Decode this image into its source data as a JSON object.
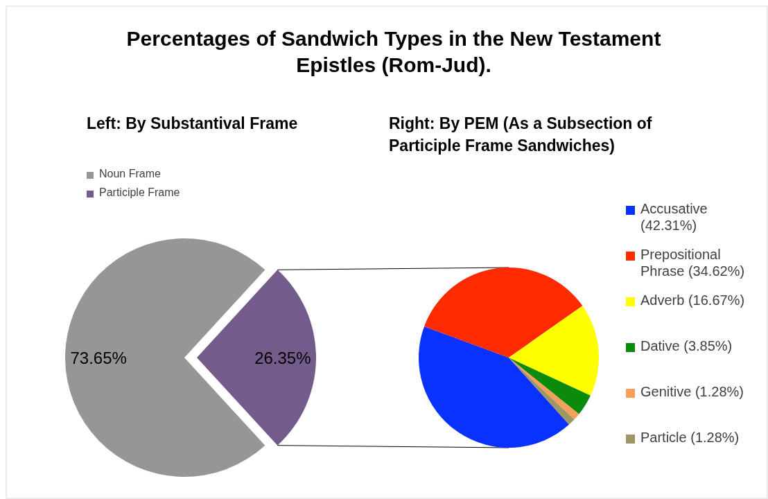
{
  "chart_data": [
    {
      "type": "pie",
      "title": "Percentages of Sandwich Types in the New Testament Epistles (Rom-Jud).",
      "subtitle": "Left: By Substantival Frame",
      "categories": [
        "Noun Frame",
        "Participle Frame"
      ],
      "values": [
        73.65,
        26.35
      ],
      "colors": [
        "#969696",
        "#735b8c"
      ],
      "value_labels": [
        "73.65%",
        "26.35%"
      ],
      "legend": "top left"
    },
    {
      "type": "pie",
      "title": "Right: By PEM (As a Subsection of Participle Frame Sandwiches)",
      "categories": [
        "Accusative (42.31%)",
        "Prepositional Phrase (34.62%)",
        "Adverb (16.67%)",
        "Dative (3.85%)",
        "Genitive (1.28%)",
        "Particle (1.28%)"
      ],
      "values": [
        42.31,
        34.62,
        16.67,
        3.85,
        1.28,
        1.28
      ],
      "colors": [
        "#0a32ff",
        "#ff2a00",
        "#ffff00",
        "#0c8a0c",
        "#f5a05a",
        "#a09664"
      ],
      "legend": "right"
    }
  ]
}
